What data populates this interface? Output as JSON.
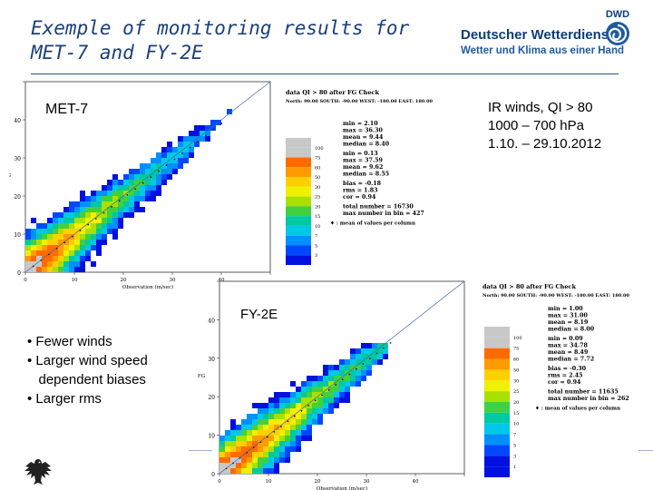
{
  "slide": {
    "title_line1": "Exemple of monitoring results for",
    "title_line2": "MET-7 and FY-2E",
    "logo_name": "Deutscher Wetterdienst",
    "logo_tagline": "Wetter und Klima aus einer Hand",
    "logo_abbr": "DWD",
    "info_line1": "IR winds, QI > 80",
    "info_line2": "1000 – 700 hPa",
    "info_line3": "1.10. – 29.10.2012",
    "bullets": [
      "• Fewer winds",
      "• Larger wind speed",
      "   dependent biases",
      "• Larger rms"
    ]
  },
  "plots": [
    {
      "label": "MET-7",
      "header": "data QI > 80 after FG Check",
      "region": "North: 90.00 SOUTH: -90.00 WEST: -180.00 EAST: 180.00",
      "xlabel": "Observation (m/sec)",
      "ylabel": "FG",
      "yticks": [
        "0",
        "10",
        "20",
        "30",
        "40",
        "50"
      ],
      "xticks": [
        "0",
        "10",
        "20",
        "30",
        "40",
        "50"
      ],
      "stats": [
        "min = 2.10",
        "max = 36.30",
        "mean = 9.44",
        "median = 8.40",
        "",
        "min = 0.13",
        "max = 37.59",
        "mean = 9.62",
        "median = 8.55",
        "",
        "bias = -0.18",
        "rms = 1.83",
        "cor = 0.94",
        "",
        "total number = 16730",
        "max number in bin = 427"
      ],
      "legend_note": "♦ : mean of values per column",
      "colorbar": [
        "100",
        "75",
        "60",
        "50",
        "30",
        "25",
        "20",
        "15",
        "10",
        "7",
        "5",
        "3"
      ]
    },
    {
      "label": "FY-2E",
      "header": "data QI > 80 after FG Check",
      "region": "North: 90.00 SOUTH: -90.00 WEST: -180.00 EAST: 180.00",
      "xlabel": "Observation (m/sec)",
      "ylabel": "FG",
      "yticks": [
        "0",
        "10",
        "20",
        "30",
        "40",
        "50"
      ],
      "xticks": [
        "0",
        "10",
        "20",
        "30",
        "40",
        "50"
      ],
      "stats": [
        "min = 1.00",
        "max = 31.00",
        "mean = 8.19",
        "median = 8.00",
        "",
        "min = 0.09",
        "max = 34.78",
        "mean = 8.49",
        "median = 7.72",
        "",
        "bias = -0.30",
        "rms = 2.45",
        "cor = 0.94",
        "",
        "total number = 11635",
        "max number in bin = 262"
      ],
      "legend_note": "♦ : mean of values per column",
      "colorbar": [
        "100",
        "75",
        "60",
        "50",
        "30",
        "25",
        "20",
        "15",
        "10",
        "7",
        "5",
        "3",
        "1"
      ]
    }
  ],
  "colors": {
    "title": "#1a3f7a",
    "bins": [
      "#c8c8c8",
      "#ff6a00",
      "#ff9a00",
      "#ffd000",
      "#f0f000",
      "#a8e000",
      "#40d040",
      "#00c8a0",
      "#00c8e8",
      "#0090ff",
      "#0048ff",
      "#0010e0"
    ]
  }
}
